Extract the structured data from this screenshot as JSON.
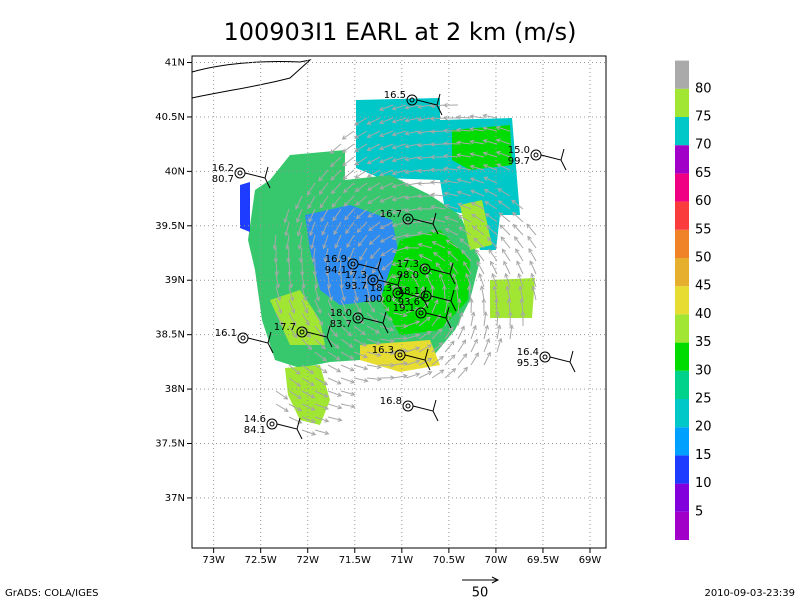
{
  "chart_data": {
    "type": "map",
    "title": "100903I1 EARL at 2 km (m/s)",
    "xlim": [
      -73.23,
      -68.83
    ],
    "ylim": [
      36.54,
      41.06
    ],
    "xticks": [
      {
        "value": -73,
        "label": "73W"
      },
      {
        "value": -72.5,
        "label": "72.5W"
      },
      {
        "value": -72,
        "label": "72W"
      },
      {
        "value": -71.5,
        "label": "71.5W"
      },
      {
        "value": -71,
        "label": "71W"
      },
      {
        "value": -70.5,
        "label": "70.5W"
      },
      {
        "value": -70,
        "label": "70W"
      },
      {
        "value": -69.5,
        "label": "69.5W"
      },
      {
        "value": -69,
        "label": "69W"
      }
    ],
    "yticks": [
      {
        "value": 37,
        "label": "37N"
      },
      {
        "value": 37.5,
        "label": "37.5N"
      },
      {
        "value": 38,
        "label": "38N"
      },
      {
        "value": 38.5,
        "label": "38.5N"
      },
      {
        "value": 39,
        "label": "39N"
      },
      {
        "value": 39.5,
        "label": "39.5N"
      },
      {
        "value": 40,
        "label": "40N"
      },
      {
        "value": 40.5,
        "label": "40.5N"
      },
      {
        "value": 41,
        "label": "41N"
      }
    ],
    "grid": true,
    "colorbar": {
      "levels": [
        5,
        10,
        15,
        20,
        25,
        30,
        35,
        40,
        45,
        50,
        55,
        60,
        65,
        70,
        75,
        80
      ],
      "colors": [
        "#a000c8",
        "#8200dc",
        "#1e3cff",
        "#00a0ff",
        "#00c8c8",
        "#00d28c",
        "#00dc00",
        "#a0e632",
        "#e6dc32",
        "#e6af2d",
        "#f08228",
        "#fa3c3c",
        "#f00082",
        "#a000c8",
        "#00c8c8",
        "#a0e632",
        "#aaaaaa"
      ]
    },
    "stations": [
      [
        "16.5"
      ],
      [
        "15.0",
        "99.7"
      ],
      [
        "16.2",
        "80.7"
      ],
      [
        "16.7"
      ],
      [
        "16.9",
        "94.1"
      ],
      [
        "17.3",
        "98.0"
      ],
      [
        "17.3",
        "93.7"
      ],
      [
        "18.3",
        "100.0"
      ],
      [
        "18.1",
        "93.6"
      ],
      [
        "19.1"
      ],
      [
        "18.0",
        "83.7"
      ],
      [
        "17.7"
      ],
      [
        "16.1"
      ],
      [
        "16.3"
      ],
      [
        "16.4",
        "95.3"
      ],
      [
        "16.8"
      ],
      [
        "14.6",
        "84.1"
      ]
    ],
    "footer_left": "GrADS: COLA/IGES",
    "reference_vector": "50",
    "footer_right": "2010-09-03-23:39"
  }
}
